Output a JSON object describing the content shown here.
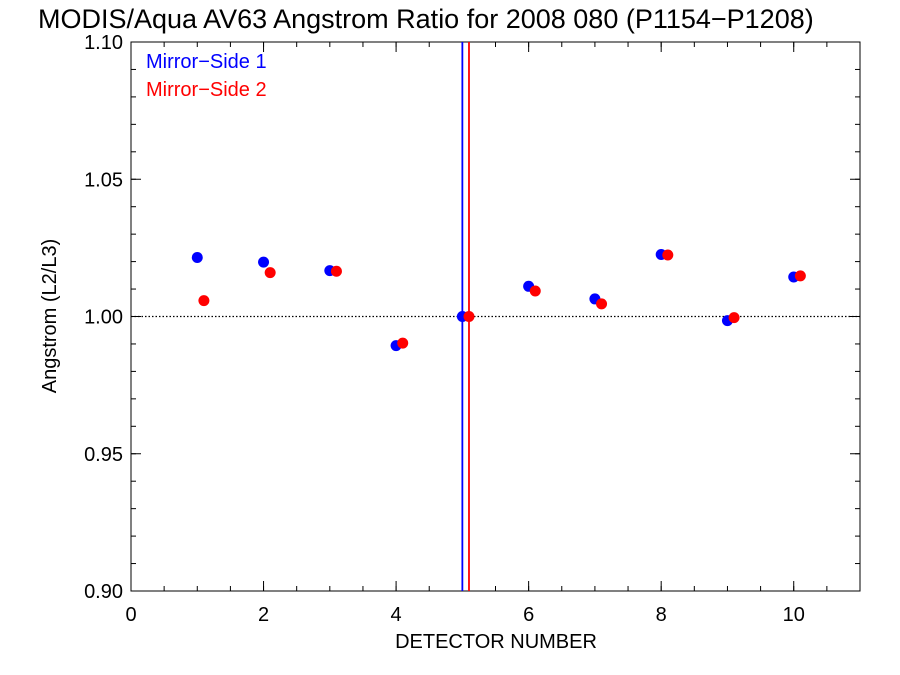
{
  "chart_data": {
    "type": "scatter",
    "title": "MODIS/Aqua AV63 Angstrom Ratio for 2008 080 (P1154−P1208)",
    "xlabel": "DETECTOR NUMBER",
    "ylabel": "Angstrom (L2/L3)",
    "xlim": [
      0,
      11
    ],
    "ylim": [
      0.9,
      1.1
    ],
    "x_ticks": [
      0,
      2,
      4,
      6,
      8,
      10
    ],
    "x_tick_labels": [
      "0",
      "2",
      "4",
      "6",
      "8",
      "10"
    ],
    "y_ticks": [
      0.9,
      0.95,
      1.0,
      1.05,
      1.1
    ],
    "y_tick_labels": [
      "0.90",
      "0.95",
      "1.00",
      "1.05",
      "1.10"
    ],
    "x_minor_step": 0.5,
    "y_minor_step": 0.01,
    "reference_line": {
      "y": 1.0,
      "style": "dotted"
    },
    "vertical_lines": [
      {
        "x": 5.0,
        "color": "#0000ff"
      },
      {
        "x": 5.1,
        "color": "#ff0000"
      }
    ],
    "legend_position": "top-left",
    "grid": false,
    "series": [
      {
        "name": "Mirror−Side 1",
        "color": "#0000ff",
        "points": [
          [
            1,
            1.0215
          ],
          [
            2,
            1.0198
          ],
          [
            3,
            1.0167
          ],
          [
            4,
            0.9894
          ],
          [
            5,
            1.0
          ],
          [
            6,
            1.011
          ],
          [
            7,
            1.0064
          ],
          [
            8,
            1.0226
          ],
          [
            9,
            0.9985
          ],
          [
            10,
            1.0144
          ]
        ]
      },
      {
        "name": "Mirror−Side 2",
        "color": "#ff0000",
        "points": [
          [
            1.1,
            1.0058
          ],
          [
            2.1,
            1.016
          ],
          [
            3.1,
            1.0165
          ],
          [
            4.1,
            0.9903
          ],
          [
            5.1,
            1.0
          ],
          [
            6.1,
            1.0093
          ],
          [
            7.1,
            1.0046
          ],
          [
            8.1,
            1.0224
          ],
          [
            9.1,
            0.9996
          ],
          [
            10.1,
            1.0148
          ]
        ]
      }
    ]
  }
}
